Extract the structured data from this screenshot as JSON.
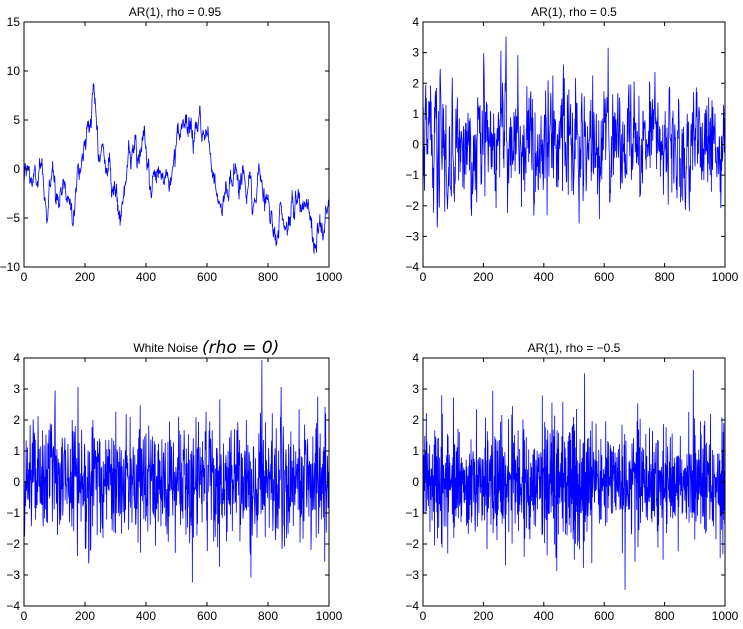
{
  "figure": {
    "background": "#ffffff",
    "line_color": "#0000ff",
    "axes_color": "#000000"
  },
  "chart_data": [
    {
      "type": "line",
      "title": "AR(1), rho = 0.95",
      "title_annotation": "",
      "xlim": [
        0,
        1000
      ],
      "ylim": [
        -10,
        15
      ],
      "xticks": [
        0,
        200,
        400,
        600,
        800,
        1000
      ],
      "yticks": [
        -10,
        -5,
        0,
        5,
        10,
        15
      ],
      "grid": false,
      "legend": "none",
      "series": [
        {
          "n": 1000,
          "rho": 0.95,
          "envelope": [
            [
              0,
              -1
            ],
            [
              50,
              -2
            ],
            [
              75,
              -5
            ],
            [
              100,
              0
            ],
            [
              150,
              -2
            ],
            [
              200,
              4
            ],
            [
              225,
              8
            ],
            [
              250,
              3
            ],
            [
              300,
              -2
            ],
            [
              350,
              0
            ],
            [
              400,
              -1
            ],
            [
              450,
              -2
            ],
            [
              500,
              1
            ],
            [
              550,
              3
            ],
            [
              575,
              5
            ],
            [
              600,
              3
            ],
            [
              650,
              -1
            ],
            [
              700,
              0
            ],
            [
              750,
              -2
            ],
            [
              800,
              -3
            ],
            [
              850,
              -4
            ],
            [
              900,
              -4
            ],
            [
              950,
              -6
            ],
            [
              1000,
              -6
            ]
          ]
        }
      ]
    },
    {
      "type": "line",
      "title": "AR(1), rho = 0.5",
      "title_annotation": "",
      "xlim": [
        0,
        1000
      ],
      "ylim": [
        -4,
        4
      ],
      "xticks": [
        0,
        200,
        400,
        600,
        800,
        1000
      ],
      "yticks": [
        -4,
        -3,
        -2,
        -1,
        0,
        1,
        2,
        3,
        4
      ],
      "grid": false,
      "legend": "none",
      "series": [
        {
          "n": 1000,
          "rho": 0.5,
          "envelope": [
            [
              0,
              0
            ],
            [
              1000,
              0
            ]
          ]
        }
      ]
    },
    {
      "type": "line",
      "title": "White Noise",
      "title_annotation": "(rho = 0)",
      "xlim": [
        0,
        1000
      ],
      "ylim": [
        -4,
        4
      ],
      "xticks": [
        0,
        200,
        400,
        600,
        800,
        1000
      ],
      "yticks": [
        -4,
        -3,
        -2,
        -1,
        0,
        1,
        2,
        3,
        4
      ],
      "grid": false,
      "legend": "none",
      "series": [
        {
          "n": 1000,
          "rho": 0,
          "envelope": [
            [
              0,
              0
            ],
            [
              1000,
              0
            ]
          ]
        }
      ]
    },
    {
      "type": "line",
      "title": "AR(1), rho = −0.5",
      "title_annotation": "",
      "xlim": [
        0,
        1000
      ],
      "ylim": [
        -4,
        4
      ],
      "xticks": [
        0,
        200,
        400,
        600,
        800,
        1000
      ],
      "yticks": [
        -4,
        -3,
        -2,
        -1,
        0,
        1,
        2,
        3,
        4
      ],
      "grid": false,
      "legend": "none",
      "series": [
        {
          "n": 1000,
          "rho": -0.5,
          "envelope": [
            [
              0,
              0
            ],
            [
              1000,
              0
            ]
          ]
        }
      ]
    }
  ]
}
